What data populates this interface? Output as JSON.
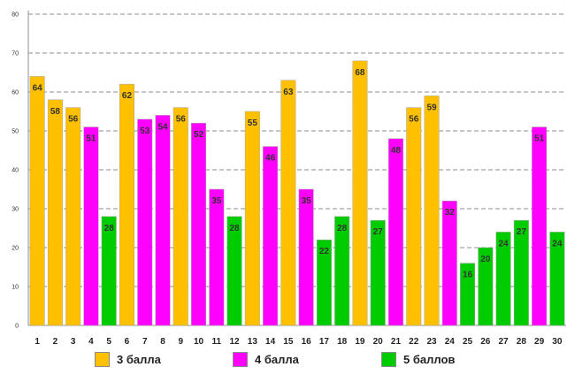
{
  "chart_data": {
    "type": "bar",
    "title": "",
    "xlabel": "",
    "ylabel": "",
    "ylim": [
      0,
      80
    ],
    "yticks": [
      "0",
      "10",
      "20",
      "30",
      "40",
      "50",
      "60",
      "70",
      "80"
    ],
    "grid": true,
    "categories": [
      "1",
      "2",
      "3",
      "4",
      "5",
      "6",
      "7",
      "8",
      "9",
      "10",
      "11",
      "12",
      "13",
      "14",
      "15",
      "16",
      "17",
      "18",
      "19",
      "20",
      "21",
      "22",
      "23",
      "24",
      "25",
      "26",
      "27",
      "28",
      "29",
      "30"
    ],
    "values": [
      64,
      58,
      56,
      51,
      28,
      62,
      53,
      54,
      56,
      52,
      35,
      28,
      55,
      46,
      63,
      35,
      22,
      28,
      68,
      27,
      48,
      56,
      59,
      32,
      16,
      20,
      24,
      27,
      51,
      24
    ],
    "value_labels": [
      "64",
      "58",
      "56",
      "51",
      "28",
      "62",
      "53",
      "54",
      "56",
      "52",
      "35",
      "28",
      "55",
      "46",
      "63",
      "35",
      "22",
      "28",
      "68",
      "27",
      "48",
      "56",
      "59",
      "32",
      "16",
      "20",
      "24",
      "27",
      "51",
      "24"
    ],
    "groups": [
      0,
      0,
      0,
      1,
      2,
      0,
      1,
      1,
      0,
      1,
      1,
      2,
      0,
      1,
      0,
      1,
      2,
      2,
      0,
      2,
      1,
      0,
      0,
      1,
      2,
      2,
      2,
      2,
      1,
      2
    ],
    "legend": [
      {
        "label": "3 балла",
        "color": "#FFC000"
      },
      {
        "label": "4 балла",
        "color": "#FF00FF"
      },
      {
        "label": "5 баллов",
        "color": "#00CC00"
      }
    ]
  }
}
